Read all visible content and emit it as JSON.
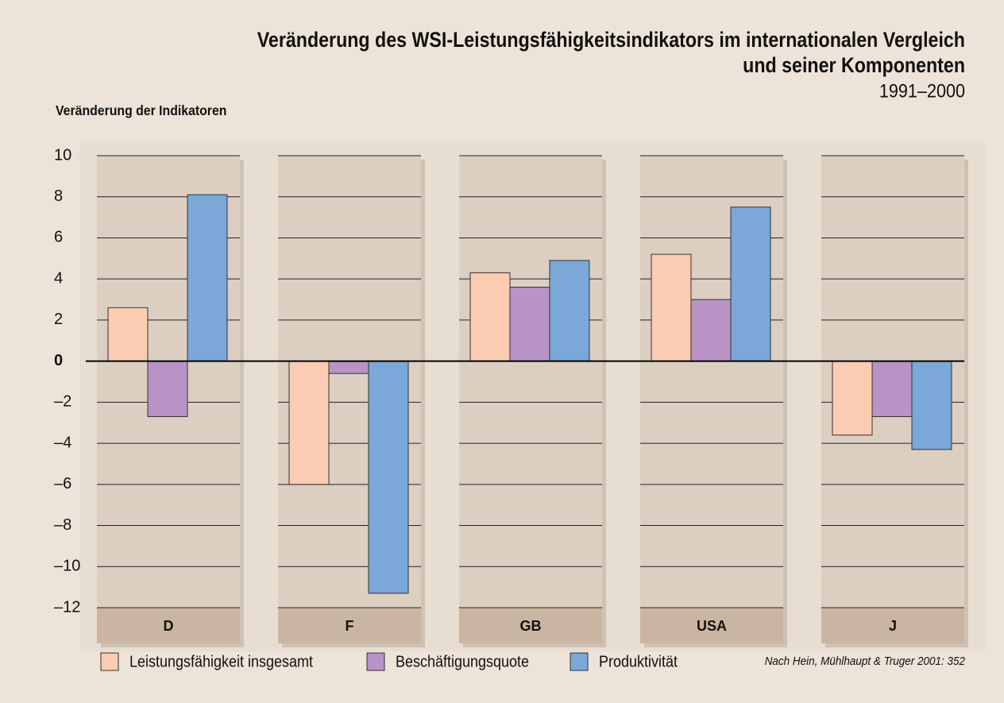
{
  "chart_data": {
    "type": "bar",
    "title": [
      "Veränderung des WSI-Leistungsfähigkeitsindikators im internationalen Vergleich",
      "und seiner Komponenten"
    ],
    "subtitle": "1991–2000",
    "y_label": "Veränderung der Indikatoren",
    "source": "Nach Hein, Mühlhaupt & Truger 2001: 352",
    "categories": [
      "D",
      "F",
      "GB",
      "USA",
      "J"
    ],
    "series": [
      {
        "name": "Leistungsfähigkeit insgesamt",
        "color": "#fbcbb2",
        "values": [
          2.6,
          -6.0,
          4.3,
          5.2,
          -3.6
        ]
      },
      {
        "name": "Beschäftigungsquote",
        "color": "#b993c5",
        "values": [
          -2.7,
          -0.6,
          3.6,
          3.0,
          -2.7
        ]
      },
      {
        "name": "Produktivität",
        "color": "#7ba7d9",
        "values": [
          8.1,
          -11.3,
          4.9,
          7.5,
          -4.3
        ]
      }
    ],
    "ylim": [
      -12,
      10
    ],
    "yticks": [
      10,
      8,
      6,
      4,
      2,
      0,
      {
        "value": -2,
        "label": "–2"
      },
      {
        "value": -4,
        "label": "–4"
      },
      {
        "value": -6,
        "label": "–6"
      },
      {
        "value": -8,
        "label": "–8"
      },
      {
        "value": -10,
        "label": "–10"
      },
      {
        "value": -12,
        "label": "–12"
      }
    ],
    "grid": true
  }
}
